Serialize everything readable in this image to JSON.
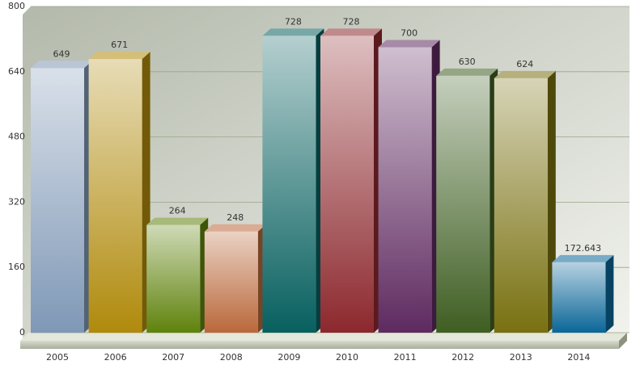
{
  "chart_data": {
    "type": "bar3d",
    "categories": [
      "2005",
      "2006",
      "2007",
      "2008",
      "2009",
      "2010",
      "2011",
      "2012",
      "2013",
      "2014"
    ],
    "values": [
      649,
      671,
      264,
      248,
      728,
      728,
      700,
      630,
      624,
      172.643
    ],
    "colors": [
      "#7f98b6",
      "#b08a0c",
      "#5f820c",
      "#b9683a",
      "#07605f",
      "#8c282d",
      "#5e2a60",
      "#3f5e22",
      "#787010",
      "#0a6698"
    ],
    "ylim": [
      0,
      800
    ],
    "yticks": [
      0,
      160,
      320,
      480,
      640,
      800
    ],
    "grid": true
  }
}
